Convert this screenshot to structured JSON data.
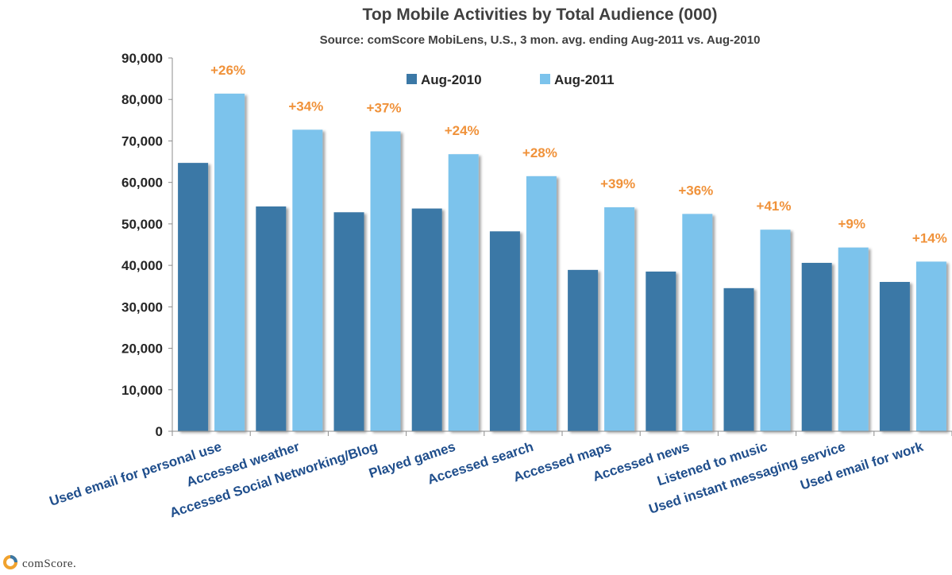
{
  "chart_data": {
    "type": "bar",
    "title": "Top Mobile Activities by Total Audience (000)",
    "subtitle": "Source: comScore MobiLens, U.S., 3 mon. avg. ending Aug-2011 vs. Aug-2010",
    "categories": [
      "Used email for personal use",
      "Accessed weather",
      "Accessed Social Networking/Blog",
      "Played games",
      "Accessed search",
      "Accessed maps",
      "Accessed news",
      "Listened to music",
      "Used instant messaging service",
      "Used email for work"
    ],
    "series": [
      {
        "name": "Aug-2010",
        "color": "#3b78a6",
        "values": [
          64700,
          54200,
          52800,
          53700,
          48200,
          38900,
          38500,
          34500,
          40600,
          36000
        ]
      },
      {
        "name": "Aug-2011",
        "color": "#7cc3ec",
        "values": [
          81400,
          72700,
          72300,
          66800,
          61500,
          54000,
          52400,
          48600,
          44300,
          40900
        ]
      }
    ],
    "annotations": [
      "+26%",
      "+34%",
      "+37%",
      "+24%",
      "+28%",
      "+39%",
      "+36%",
      "+41%",
      "+9%",
      "+14%"
    ],
    "yticks": [
      "0",
      "10,000",
      "20,000",
      "30,000",
      "40,000",
      "50,000",
      "60,000",
      "70,000",
      "80,000",
      "90,000"
    ],
    "ylim": [
      0,
      90000
    ],
    "legend_position": "top-center",
    "grid": false
  },
  "branding": {
    "logo_text": "comScore."
  }
}
